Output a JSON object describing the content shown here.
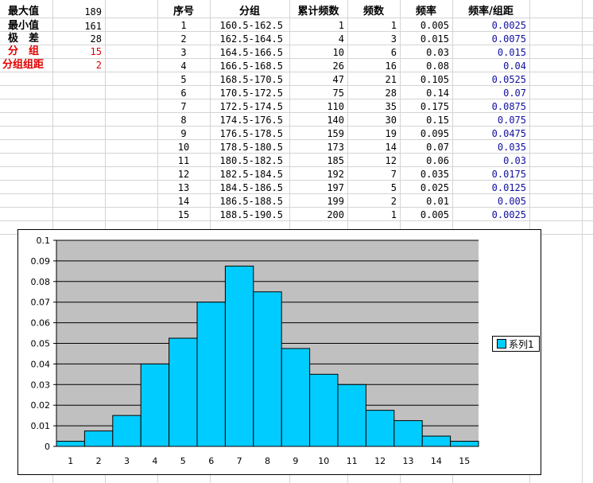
{
  "summary": {
    "max_label": "最大值",
    "max_value": "189",
    "min_label": "最小值",
    "min_value": "161",
    "range_label": "极　差",
    "range_value": "28",
    "groups_label": "分　组",
    "groups_value": "15",
    "width_label": "分组组距",
    "width_value": "2"
  },
  "table": {
    "headers": [
      "序号",
      "分组",
      "累计频数",
      "频数",
      "频率",
      "频率/组距"
    ],
    "rows": [
      [
        "1",
        "160.5-162.5",
        "1",
        "1",
        "0.005",
        "0.0025"
      ],
      [
        "2",
        "162.5-164.5",
        "4",
        "3",
        "0.015",
        "0.0075"
      ],
      [
        "3",
        "164.5-166.5",
        "10",
        "6",
        "0.03",
        "0.015"
      ],
      [
        "4",
        "166.5-168.5",
        "26",
        "16",
        "0.08",
        "0.04"
      ],
      [
        "5",
        "168.5-170.5",
        "47",
        "21",
        "0.105",
        "0.0525"
      ],
      [
        "6",
        "170.5-172.5",
        "75",
        "28",
        "0.14",
        "0.07"
      ],
      [
        "7",
        "172.5-174.5",
        "110",
        "35",
        "0.175",
        "0.0875"
      ],
      [
        "8",
        "174.5-176.5",
        "140",
        "30",
        "0.15",
        "0.075"
      ],
      [
        "9",
        "176.5-178.5",
        "159",
        "19",
        "0.095",
        "0.0475"
      ],
      [
        "10",
        "178.5-180.5",
        "173",
        "14",
        "0.07",
        "0.035"
      ],
      [
        "11",
        "180.5-182.5",
        "185",
        "12",
        "0.06",
        "0.03"
      ],
      [
        "12",
        "182.5-184.5",
        "192",
        "7",
        "0.035",
        "0.0175"
      ],
      [
        "13",
        "184.5-186.5",
        "197",
        "5",
        "0.025",
        "0.0125"
      ],
      [
        "14",
        "186.5-188.5",
        "199",
        "2",
        "0.01",
        "0.005"
      ],
      [
        "15",
        "188.5-190.5",
        "200",
        "1",
        "0.005",
        "0.0025"
      ]
    ]
  },
  "chart_data": {
    "type": "bar",
    "categories": [
      "1",
      "2",
      "3",
      "4",
      "5",
      "6",
      "7",
      "8",
      "9",
      "10",
      "11",
      "12",
      "13",
      "14",
      "15"
    ],
    "series": [
      {
        "name": "系列1",
        "values": [
          0.0025,
          0.0075,
          0.015,
          0.04,
          0.0525,
          0.07,
          0.0875,
          0.075,
          0.0475,
          0.035,
          0.03,
          0.0175,
          0.0125,
          0.005,
          0.0025
        ]
      }
    ],
    "ylim": [
      0,
      0.1
    ],
    "yticks": [
      "0",
      "0.01",
      "0.02",
      "0.03",
      "0.04",
      "0.05",
      "0.06",
      "0.07",
      "0.08",
      "0.09",
      "0.1"
    ],
    "grid": true,
    "legend": "right",
    "colors": {
      "bar": "#00ccff",
      "plot_bg": "#c0c0c0"
    }
  }
}
